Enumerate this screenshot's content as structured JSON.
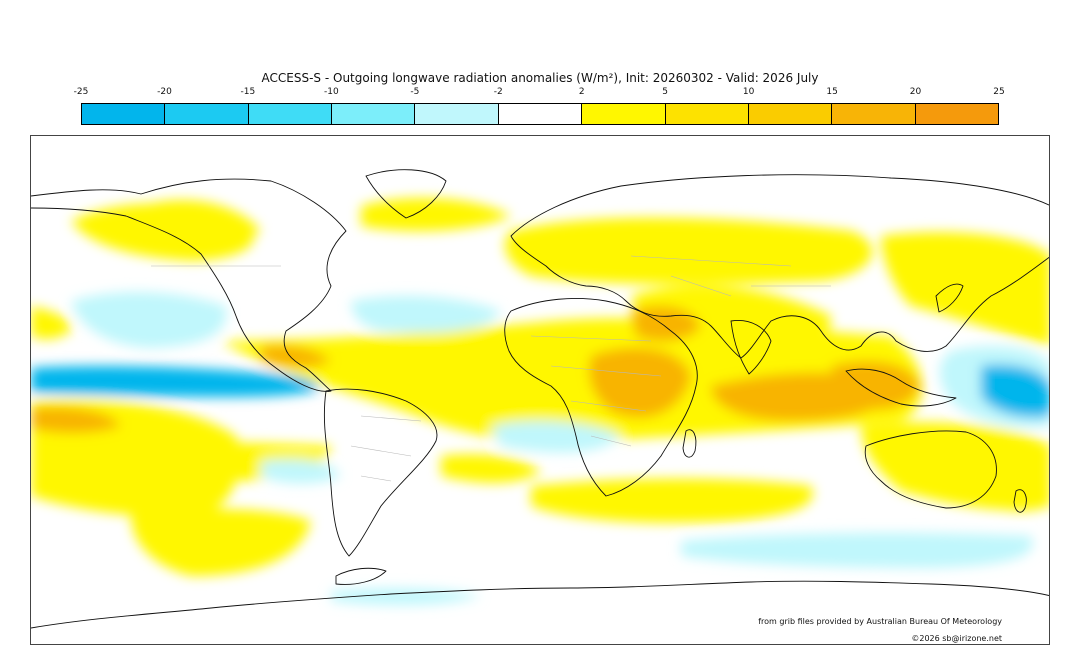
{
  "title": "ACCESS-S - Outgoing longwave radiation anomalies (W/m²), Init: 20260302 - Valid: 2026 July",
  "legend": {
    "ticks": [
      "-25",
      "-20",
      "-15",
      "-10",
      "-5",
      "-2",
      "2",
      "5",
      "10",
      "15",
      "20",
      "25"
    ],
    "colors": [
      "#02b5ec",
      "#1ccaf2",
      "#3fdcf6",
      "#7ceefa",
      "#c0f7fc",
      "#ffffff",
      "#fff700",
      "#fde200",
      "#facc00",
      "#f8b406",
      "#f59a0c"
    ]
  },
  "credits": {
    "source": "from grib files provided by Australian Bureau Of Meteorology",
    "copyright": "©2026 sb@irizone.net"
  }
}
